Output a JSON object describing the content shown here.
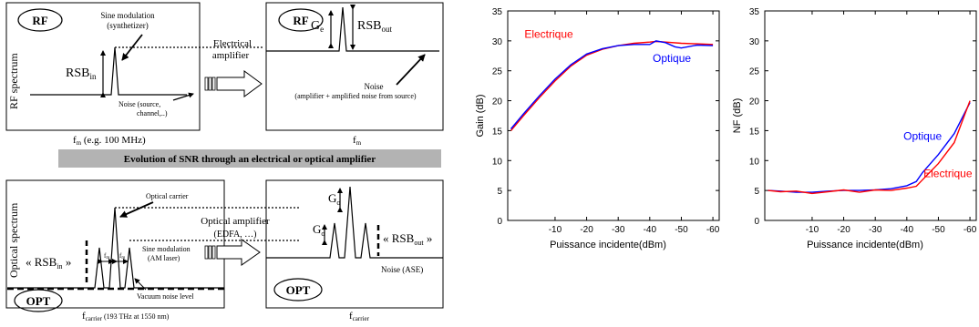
{
  "diagram": {
    "rf_tag": "RF",
    "opt_tag": "OPT",
    "rf_axis_label": "RF spectrum",
    "opt_axis_label": "Optical spectrum",
    "sine_mod_label": "Sine modulation",
    "sine_mod_sub": "(synthetizer)",
    "rsb_in": "RSB",
    "rsb_in_sub": "in",
    "noise_source": "Noise (source,",
    "noise_source_2": "channel,..)",
    "fm_axis": "f",
    "fm_sub": "m",
    "fm_suffix": " (e.g. 100 MHz)",
    "electrical_amp": "Electrical",
    "electrical_amp_2": "amplifier",
    "ge": "G",
    "ge_sub": "e",
    "rsb_out": "RSB",
    "rsb_out_sub": "out",
    "noise_amp": "Noise",
    "noise_amp_2": "(amplifier + amplified noise from source)",
    "banner": "Evolution of SNR through an electrical or optical amplifier",
    "optical_carrier": "Optical carrier",
    "sine_mod_am": "Sine modulation",
    "sine_mod_am_sub": "(AM laser)",
    "fm_small": "f",
    "fm_small_sub": "m",
    "rsb_in_opt": "« RSB",
    "rsb_in_opt_sub": "in",
    "rsb_in_opt_end": " »",
    "vacuum_noise": "Vacuum noise level",
    "fcarrier": "f",
    "fcarrier_sub": "carrier",
    "fcarrier_suffix": " (193 THz at 1550 nm)",
    "optical_amp": "Optical amplifier",
    "optical_amp_2": "(EDFA, …)",
    "go": "G",
    "go_sub": "o",
    "rsb_out_opt": "« RSB",
    "rsb_out_opt_sub": "out",
    "rsb_out_opt_end": " »",
    "noise_ase": "Noise (ASE)"
  },
  "colors": {
    "electrique": "#ff0000",
    "optique": "#0000ff",
    "banner_bg": "#b3b3b3"
  },
  "chart_data": [
    {
      "type": "line",
      "xlabel": "Puissance incidente(dBm)",
      "ylabel": "Gain (dB)",
      "xlim": [
        5,
        -62
      ],
      "ylim": [
        0,
        35
      ],
      "xticks": [
        -10,
        -20,
        -30,
        -40,
        -50,
        -60
      ],
      "yticks": [
        0,
        5,
        10,
        15,
        20,
        25,
        30,
        35
      ],
      "series": [
        {
          "name": "Electrique",
          "color": "#ff0000",
          "x": [
            4,
            0,
            -5,
            -10,
            -15,
            -20,
            -25,
            -30,
            -35,
            -40,
            -42,
            -45,
            -50,
            -55,
            -60
          ],
          "y": [
            15,
            17.5,
            20.5,
            23.3,
            25.8,
            27.6,
            28.6,
            29.2,
            29.6,
            29.8,
            29.9,
            29.8,
            29.6,
            29.5,
            29.4
          ]
        },
        {
          "name": "Optique",
          "color": "#0000ff",
          "x": [
            4,
            0,
            -5,
            -10,
            -15,
            -20,
            -25,
            -30,
            -35,
            -40,
            -42,
            -45,
            -48,
            -50,
            -55,
            -60
          ],
          "y": [
            15.3,
            17.8,
            20.8,
            23.6,
            26.0,
            27.8,
            28.7,
            29.2,
            29.4,
            29.4,
            30.0,
            29.7,
            29.0,
            28.8,
            29.3,
            29.2
          ]
        }
      ],
      "labels": [
        {
          "text": "Electrique",
          "series": "Electrique",
          "x": -8,
          "y": 30.5
        },
        {
          "text": "Optique",
          "series": "Optique",
          "x": -47,
          "y": 26.5
        }
      ]
    },
    {
      "type": "line",
      "xlabel": "Puissance incidente(dBm)",
      "ylabel": "NF (dB)",
      "xlim": [
        5,
        -62
      ],
      "ylim": [
        0,
        35
      ],
      "xticks": [
        -10,
        -20,
        -30,
        -40,
        -50,
        -60
      ],
      "yticks": [
        0,
        5,
        10,
        15,
        20,
        25,
        30,
        35
      ],
      "series": [
        {
          "name": "Optique",
          "color": "#0000ff",
          "x": [
            4,
            0,
            -5,
            -10,
            -15,
            -20,
            -25,
            -30,
            -35,
            -40,
            -43,
            -45,
            -50,
            -55,
            -60
          ],
          "y": [
            5.0,
            4.9,
            4.7,
            4.7,
            4.9,
            5.0,
            5.0,
            5.1,
            5.3,
            5.8,
            6.5,
            8.0,
            11.0,
            14.5,
            19.7
          ]
        },
        {
          "name": "Electrique",
          "color": "#ff0000",
          "x": [
            4,
            0,
            -5,
            -10,
            -15,
            -20,
            -25,
            -30,
            -35,
            -40,
            -43,
            -45,
            -50,
            -55,
            -60
          ],
          "y": [
            5.0,
            4.8,
            4.9,
            4.5,
            4.8,
            5.1,
            4.7,
            5.1,
            5.0,
            5.4,
            5.7,
            6.8,
            9.5,
            13.0,
            20.0
          ]
        }
      ],
      "labels": [
        {
          "text": "Optique",
          "series": "Optique",
          "x": -45,
          "y": 13.5
        },
        {
          "text": "Electrique",
          "series": "Electrique",
          "x": -53,
          "y": 7.2
        }
      ]
    }
  ]
}
